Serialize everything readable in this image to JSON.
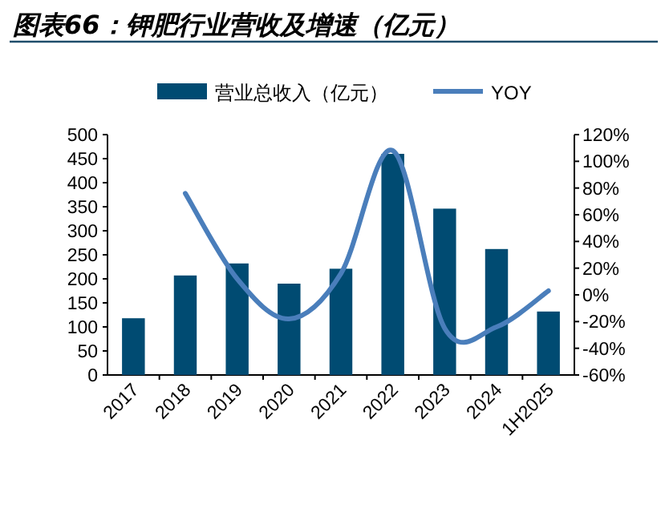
{
  "chart_data": {
    "type": "bar",
    "title": "图表66：钾肥行业营收及增速（亿元）",
    "categories": [
      "2017",
      "2018",
      "2019",
      "2020",
      "2021",
      "2022",
      "2023",
      "2024",
      "1H2025"
    ],
    "series": [
      {
        "name": "营业总收入（亿元）",
        "color": "#004b72",
        "values": [
          118,
          207,
          232,
          190,
          221,
          460,
          346,
          262,
          132
        ]
      },
      {
        "name": "YOY",
        "type": "line",
        "axis": "y2",
        "color": "#4a7ebb",
        "values": [
          null,
          76,
          12,
          -18,
          16,
          108,
          -25,
          -24,
          3
        ]
      }
    ],
    "ylim": [
      0,
      500
    ],
    "yticks": [
      0,
      50,
      100,
      150,
      200,
      250,
      300,
      350,
      400,
      450,
      500
    ],
    "y2lim": [
      -60,
      120
    ],
    "y2ticks": [
      {
        "value": -60,
        "label": "-60%"
      },
      {
        "value": -40,
        "label": "-40%"
      },
      {
        "value": -20,
        "label": "-20%"
      },
      {
        "value": 0,
        "label": "0%"
      },
      {
        "value": 20,
        "label": "20%"
      },
      {
        "value": 40,
        "label": "40%"
      },
      {
        "value": 60,
        "label": "60%"
      },
      {
        "value": 80,
        "label": "80%"
      },
      {
        "value": 100,
        "label": "100%"
      },
      {
        "value": 120,
        "label": "120%"
      }
    ],
    "legend": "top"
  }
}
